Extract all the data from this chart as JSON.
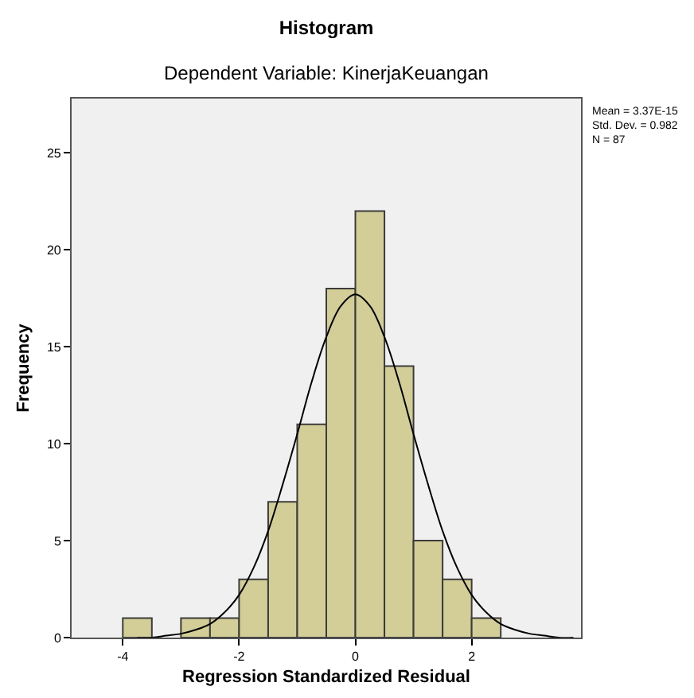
{
  "chart_data": {
    "type": "histogram",
    "title": "Histogram",
    "subtitle": "Dependent Variable: KinerjaKeuangan",
    "xlabel": "Regression Standardized Residual",
    "ylabel": "Frequency",
    "bins": [
      -4,
      -3.5,
      -3,
      -2.5,
      -2,
      -1.5,
      -1,
      -0.5,
      0,
      0.5,
      1,
      1.5,
      2,
      2.5
    ],
    "values": [
      1,
      0,
      1,
      1,
      3,
      7,
      11,
      18,
      22,
      14,
      5,
      3,
      1
    ],
    "color": "#d3ce97",
    "series": [
      {
        "type": "line",
        "color": "#000000",
        "x": [
          -3.75,
          -3.5,
          -3.25,
          -3,
          -2.75,
          -2.5,
          -2.25,
          -2,
          -1.75,
          -1.5,
          -1.25,
          -1,
          -0.75,
          -0.5,
          -0.25,
          0,
          0.25,
          0.5,
          0.75,
          1,
          1.25,
          1.5,
          1.75,
          2,
          2.25,
          2.5,
          2.75,
          3,
          3.25,
          3.5,
          3.75
        ],
        "values": [
          0,
          0,
          0.1,
          0.2,
          0.4,
          0.7,
          1.3,
          2.2,
          3.6,
          5.5,
          7.9,
          10.5,
          13.2,
          15.5,
          17.1,
          17.7,
          17.1,
          15.5,
          13.2,
          10.5,
          7.9,
          5.5,
          3.6,
          2.2,
          1.3,
          0.7,
          0.4,
          0.2,
          0.1,
          0,
          0
        ]
      }
    ],
    "xlim": [
      -4.88,
      3.88
    ],
    "xticks": [
      -4,
      -2,
      0,
      2
    ],
    "ylim": [
      0,
      27.8
    ],
    "yticks": [
      0,
      5,
      10,
      15,
      20,
      25
    ],
    "annotations": [
      "Mean = 3.37E-15",
      "Std. Dev. = 0.982",
      "N = 87"
    ]
  }
}
